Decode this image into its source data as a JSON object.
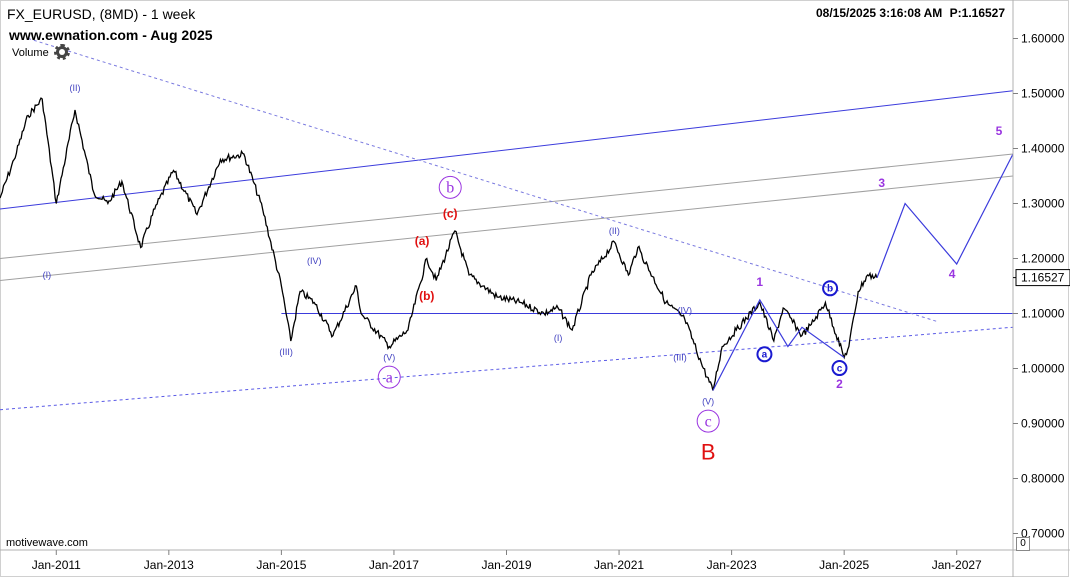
{
  "header": {
    "symbol_line": "FX_EURUSD, (8MD) - 1 week",
    "site_line": "www.ewnation.com  - Aug 2025",
    "volume_label": "Volume",
    "settings_icon": "gear-icon",
    "datetime": "08/15/2025 3:16:08 AM",
    "price_readout": "P:1.16527",
    "footer_brand": "motivewave.com",
    "zero_label": "0"
  },
  "chart_data": {
    "type": "line",
    "title": "FX_EURUSD, (8MD) - 1 week",
    "y_axis": {
      "ticks": [
        0.7,
        0.8,
        0.9,
        1.0,
        1.1,
        1.2,
        1.3,
        1.4,
        1.5,
        1.6
      ],
      "tick_labels": [
        "0.70000",
        "0.80000",
        "0.90000",
        "1.00000",
        "1.10000",
        "1.20000",
        "1.30000",
        "1.40000",
        "1.50000",
        "1.60000"
      ],
      "range": [
        0.67,
        1.67
      ],
      "position": "right"
    },
    "x_axis": {
      "range": [
        "2010-01",
        "2028-01"
      ],
      "ticks": [
        "2011-01",
        "2013-01",
        "2015-01",
        "2017-01",
        "2019-01",
        "2021-01",
        "2023-01",
        "2025-01",
        "2027-01"
      ],
      "tick_labels": [
        "Jan-2011",
        "Jan-2013",
        "Jan-2015",
        "Jan-2017",
        "Jan-2019",
        "Jan-2021",
        "Jan-2023",
        "Jan-2025",
        "Jan-2027"
      ]
    },
    "last_price": 1.16527,
    "last_price_label": "1.16527",
    "series": [
      {
        "style": "price",
        "color": "#000000",
        "points": [
          [
            "2010-01",
            1.31
          ],
          [
            "2010-04",
            1.38
          ],
          [
            "2010-07",
            1.46
          ],
          [
            "2010-10",
            1.49
          ],
          [
            "2011-01",
            1.3
          ],
          [
            "2011-05",
            1.47
          ],
          [
            "2011-09",
            1.32
          ],
          [
            "2011-12",
            1.3
          ],
          [
            "2012-03",
            1.34
          ],
          [
            "2012-07",
            1.22
          ],
          [
            "2012-10",
            1.29
          ],
          [
            "2013-02",
            1.36
          ],
          [
            "2013-07",
            1.28
          ],
          [
            "2013-12",
            1.38
          ],
          [
            "2014-05",
            1.39
          ],
          [
            "2014-09",
            1.29
          ],
          [
            "2015-01",
            1.15
          ],
          [
            "2015-03",
            1.05
          ],
          [
            "2015-05",
            1.14
          ],
          [
            "2015-08",
            1.12
          ],
          [
            "2015-12",
            1.06
          ],
          [
            "2016-05",
            1.15
          ],
          [
            "2016-06",
            1.1
          ],
          [
            "2016-12",
            1.04
          ],
          [
            "2017-04",
            1.07
          ],
          [
            "2017-08",
            1.2
          ],
          [
            "2017-10",
            1.16
          ],
          [
            "2018-02",
            1.25
          ],
          [
            "2018-05",
            1.17
          ],
          [
            "2018-08",
            1.15
          ],
          [
            "2018-11",
            1.13
          ],
          [
            "2019-04",
            1.12
          ],
          [
            "2019-09",
            1.1
          ],
          [
            "2019-12",
            1.11
          ],
          [
            "2020-03",
            1.07
          ],
          [
            "2020-07",
            1.17
          ],
          [
            "2020-12",
            1.23
          ],
          [
            "2021-03",
            1.17
          ],
          [
            "2021-05",
            1.22
          ],
          [
            "2021-11",
            1.12
          ],
          [
            "2022-03",
            1.09
          ],
          [
            "2022-07",
            1.0
          ],
          [
            "2022-09",
            0.96
          ],
          [
            "2022-11",
            1.04
          ],
          [
            "2023-02",
            1.07
          ],
          [
            "2023-07",
            1.12
          ],
          [
            "2023-10",
            1.05
          ],
          [
            "2023-12",
            1.11
          ],
          [
            "2024-04",
            1.06
          ],
          [
            "2024-06",
            1.08
          ],
          [
            "2024-09",
            1.12
          ],
          [
            "2025-01",
            1.02
          ],
          [
            "2025-02",
            1.04
          ],
          [
            "2025-04",
            1.14
          ],
          [
            "2025-06",
            1.17
          ],
          [
            "2025-08",
            1.165
          ]
        ]
      },
      {
        "style": "projection",
        "color": "#3b3bdc",
        "points": [
          [
            "2025-08",
            1.165
          ],
          [
            "2026-02",
            1.3
          ],
          [
            "2027-01",
            1.19
          ],
          [
            "2028-01",
            1.39
          ]
        ]
      },
      {
        "style": "wave-sketch",
        "color": "#3b3bdc",
        "points": [
          [
            "2022-09",
            0.96
          ],
          [
            "2023-07",
            1.125
          ],
          [
            "2024-01",
            1.04
          ],
          [
            "2024-04",
            1.075
          ],
          [
            "2025-01",
            1.02
          ]
        ]
      }
    ],
    "levels": [
      {
        "style": "solid",
        "color": "#3b3bdc",
        "from": [
          "2015-01",
          1.1
        ],
        "to": [
          "2028-01",
          1.1
        ]
      },
      {
        "style": "solid",
        "color": "#3b3bdc",
        "from": [
          "2010-01",
          1.29
        ],
        "to": [
          "2028-01",
          1.505
        ]
      },
      {
        "style": "solid",
        "color": "#a0a0a0",
        "from": [
          "2010-01",
          1.2
        ],
        "to": [
          "2028-01",
          1.39
        ]
      },
      {
        "style": "solid",
        "color": "#a0a0a0",
        "from": [
          "2010-01",
          1.16
        ],
        "to": [
          "2028-01",
          1.35
        ]
      },
      {
        "style": "dashed",
        "color": "#5a5ae6",
        "from": [
          "2010-01",
          0.925
        ],
        "to": [
          "2028-01",
          1.075
        ]
      },
      {
        "style": "dashed",
        "color": "#7a7adf",
        "from": [
          "2010-07",
          1.6
        ],
        "to": [
          "2026-09",
          1.085
        ]
      }
    ],
    "annotations": [
      {
        "text": "(II)",
        "x": "2011-05",
        "y": 1.505,
        "color": "#4040c0",
        "size": "small"
      },
      {
        "text": "(I)",
        "x": "2010-11",
        "y": 1.165,
        "color": "#4040c0",
        "size": "small"
      },
      {
        "text": "(IV)",
        "x": "2015-08",
        "y": 1.19,
        "color": "#4040c0",
        "size": "small"
      },
      {
        "text": "(III)",
        "x": "2015-02",
        "y": 1.025,
        "color": "#4040c0",
        "size": "small"
      },
      {
        "text": "(V)",
        "x": "2016-12",
        "y": 1.015,
        "color": "#4040c0",
        "size": "small"
      },
      {
        "text": "a",
        "x": "2016-12",
        "y": 0.975,
        "color": "#9a35e0",
        "size": "circled-large"
      },
      {
        "text": "b",
        "x": "2018-01",
        "y": 1.32,
        "color": "#9a35e0",
        "size": "circled-large"
      },
      {
        "text": "(c)",
        "x": "2018-01",
        "y": 1.275,
        "color": "#e01010",
        "size": "medium-bold"
      },
      {
        "text": "(a)",
        "x": "2017-07",
        "y": 1.225,
        "color": "#e01010",
        "size": "medium-bold"
      },
      {
        "text": "(b)",
        "x": "2017-08",
        "y": 1.125,
        "color": "#e01010",
        "size": "medium-bold"
      },
      {
        "text": "(II)",
        "x": "2020-12",
        "y": 1.245,
        "color": "#4040c0",
        "size": "small"
      },
      {
        "text": "(I)",
        "x": "2019-12",
        "y": 1.05,
        "color": "#4040c0",
        "size": "small"
      },
      {
        "text": "(IV)",
        "x": "2022-03",
        "y": 1.1,
        "color": "#4040c0",
        "size": "small"
      },
      {
        "text": "(III)",
        "x": "2022-02",
        "y": 1.015,
        "color": "#4040c0",
        "size": "small"
      },
      {
        "text": "(V)",
        "x": "2022-08",
        "y": 0.935,
        "color": "#4040c0",
        "size": "small"
      },
      {
        "text": "c",
        "x": "2022-08",
        "y": 0.895,
        "color": "#9a35e0",
        "size": "circled-large"
      },
      {
        "text": "B",
        "x": "2022-08",
        "y": 0.835,
        "color": "#e01010",
        "size": "large"
      },
      {
        "text": "1",
        "x": "2023-07",
        "y": 1.15,
        "color": "#9a35e0",
        "size": "medium-bold"
      },
      {
        "text": "a",
        "x": "2023-08",
        "y": 1.02,
        "color": "#1a1ad0",
        "size": "circled-small"
      },
      {
        "text": "b",
        "x": "2024-10",
        "y": 1.14,
        "color": "#1a1ad0",
        "size": "circled-small"
      },
      {
        "text": "c",
        "x": "2024-12",
        "y": 0.995,
        "color": "#1a1ad0",
        "size": "circled-small"
      },
      {
        "text": "2",
        "x": "2024-12",
        "y": 0.965,
        "color": "#9a35e0",
        "size": "medium-bold"
      },
      {
        "text": "3",
        "x": "2025-09",
        "y": 1.33,
        "color": "#9a35e0",
        "size": "medium-bold"
      },
      {
        "text": "4",
        "x": "2026-12",
        "y": 1.165,
        "color": "#9a35e0",
        "size": "medium-bold"
      },
      {
        "text": "5",
        "x": "2027-10",
        "y": 1.425,
        "color": "#9a35e0",
        "size": "medium-bold"
      }
    ]
  }
}
